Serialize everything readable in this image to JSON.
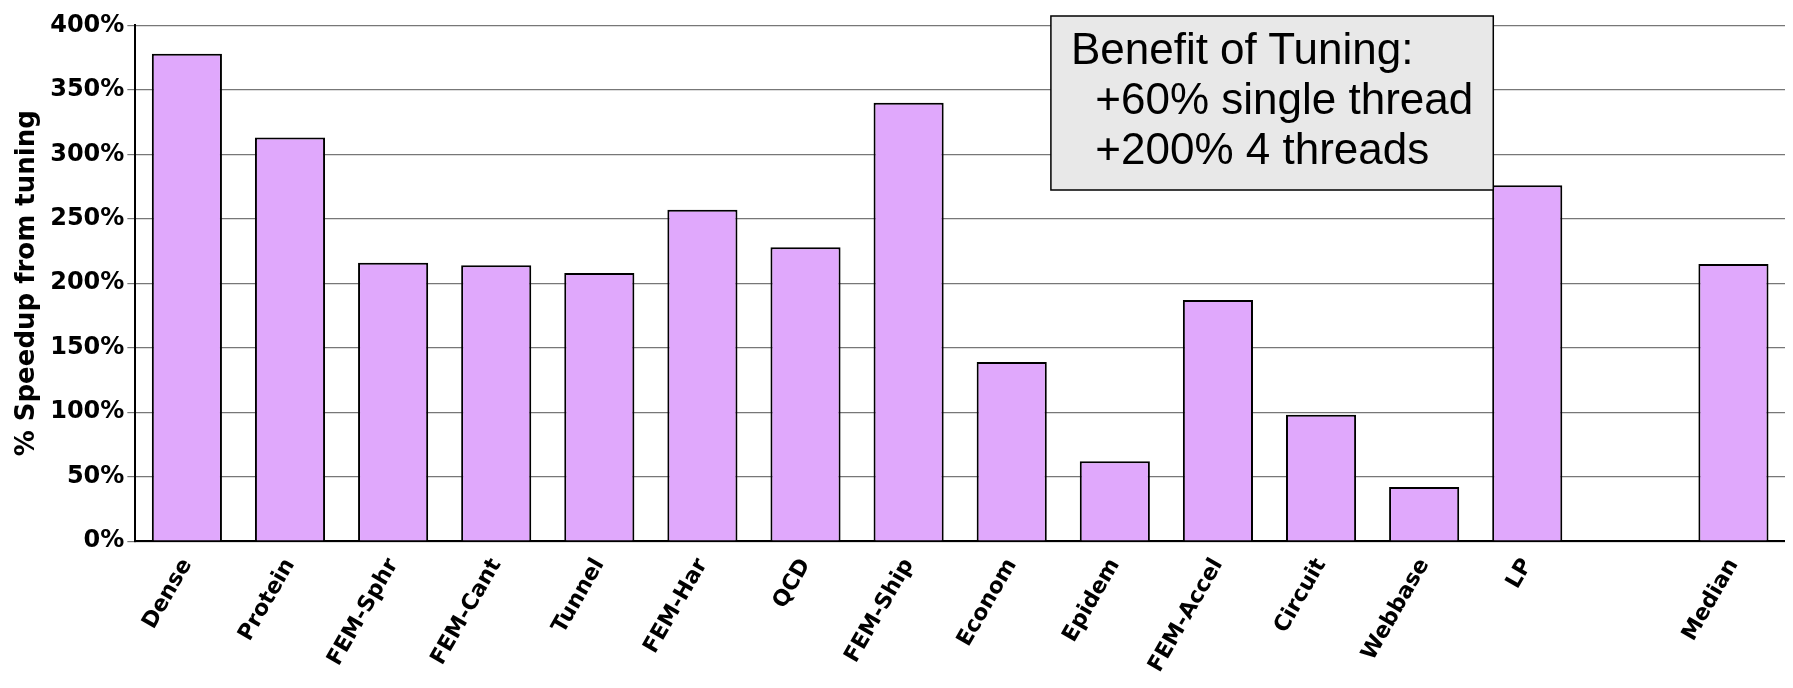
{
  "chart_data": {
    "type": "bar",
    "ylabel": "% Speedup from tuning",
    "categories": [
      "Dense",
      "Protein",
      "FEM-Sphr",
      "FEM-Cant",
      "Tunnel",
      "FEM-Har",
      "QCD",
      "FEM-Ship",
      "Econom",
      "Epidem",
      "FEM-Accel",
      "Circuit",
      "Webbase",
      "LP",
      null,
      "Median"
    ],
    "values": [
      378,
      313,
      216,
      214,
      208,
      257,
      228,
      340,
      139,
      62,
      187,
      98,
      42,
      276,
      null,
      215
    ],
    "color": "#e0a8fc",
    "ylim": [
      0,
      400
    ],
    "yticks": [
      {
        "value": 0,
        "label": "0%"
      },
      {
        "value": 50,
        "label": "50%"
      },
      {
        "value": 100,
        "label": "100%"
      },
      {
        "value": 150,
        "label": "150%"
      },
      {
        "value": 200,
        "label": "200%"
      },
      {
        "value": 250,
        "label": "250%"
      },
      {
        "value": 300,
        "label": "300%"
      },
      {
        "value": 350,
        "label": "350%"
      },
      {
        "value": 400,
        "label": "400%"
      }
    ],
    "grid": "y",
    "annotations": [
      "Benefit of Tuning:\n  +60% single thread\n  +200% 4 threads"
    ]
  }
}
